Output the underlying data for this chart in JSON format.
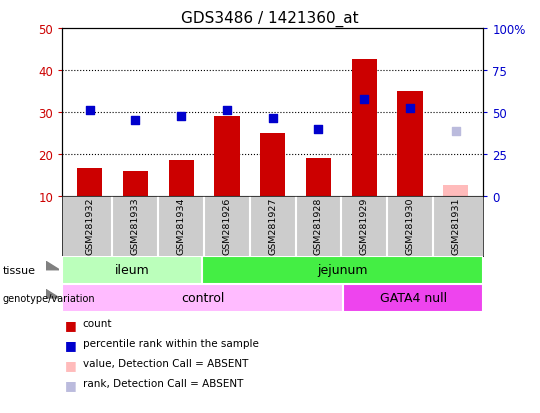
{
  "title": "GDS3486 / 1421360_at",
  "samples": [
    "GSM281932",
    "GSM281933",
    "GSM281934",
    "GSM281926",
    "GSM281927",
    "GSM281928",
    "GSM281929",
    "GSM281930",
    "GSM281931"
  ],
  "bar_values": [
    16.5,
    15.8,
    18.5,
    29.0,
    25.0,
    19.0,
    42.5,
    35.0,
    null
  ],
  "absent_bar_value": 12.5,
  "absent_bar_color": "#ffbbbb",
  "dot_values": [
    30.5,
    28.0,
    29.0,
    30.5,
    28.5,
    26.0,
    33.0,
    31.0,
    null
  ],
  "absent_dot_value": 25.5,
  "absent_dot_color": "#bbbbdd",
  "red_color": "#cc0000",
  "blue_color": "#0000cc",
  "ylim_left": [
    10,
    50
  ],
  "ylim_right": [
    0,
    100
  ],
  "yticks_left": [
    10,
    20,
    30,
    40,
    50
  ],
  "yticks_right": [
    0,
    25,
    50,
    75,
    100
  ],
  "ytick_labels_left": [
    "10",
    "20",
    "30",
    "40",
    "50"
  ],
  "ytick_labels_right": [
    "0",
    "25",
    "50",
    "75",
    "100%"
  ],
  "tissue_labels": [
    {
      "text": "ileum",
      "start": 0,
      "end": 3,
      "color": "#bbffbb"
    },
    {
      "text": "jejunum",
      "start": 3,
      "end": 9,
      "color": "#44ee44"
    }
  ],
  "genotype_labels": [
    {
      "text": "control",
      "start": 0,
      "end": 6,
      "color": "#ffbbff"
    },
    {
      "text": "GATA4 null",
      "start": 6,
      "end": 9,
      "color": "#ee44ee"
    }
  ],
  "legend_items": [
    {
      "label": "count",
      "color": "#cc0000"
    },
    {
      "label": "percentile rank within the sample",
      "color": "#0000cc"
    },
    {
      "label": "value, Detection Call = ABSENT",
      "color": "#ffbbbb"
    },
    {
      "label": "rank, Detection Call = ABSENT",
      "color": "#bbbbdd"
    }
  ],
  "bar_width": 0.55,
  "dot_size": 40,
  "sample_bg_color": "#cccccc"
}
